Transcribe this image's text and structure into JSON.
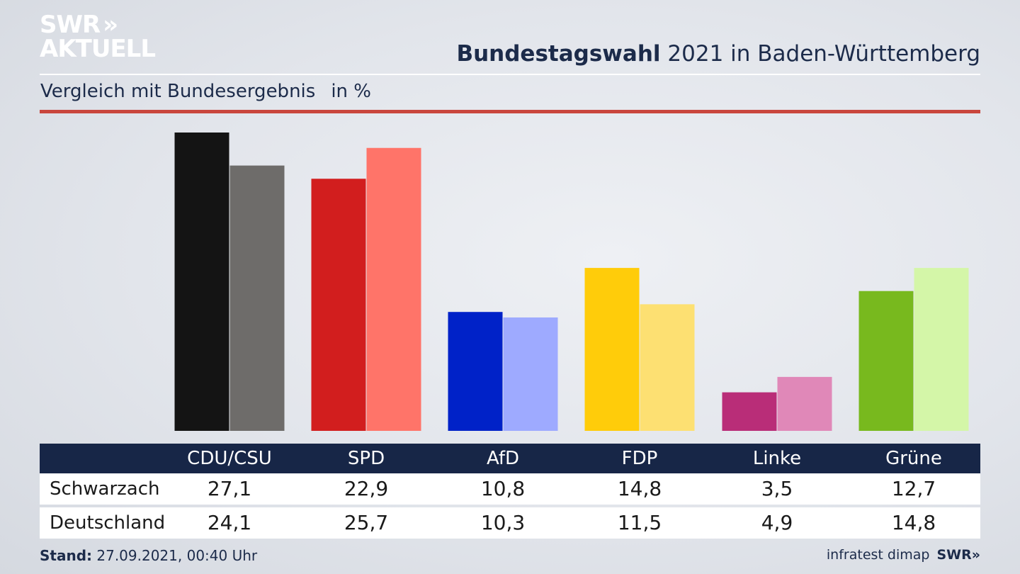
{
  "logo": {
    "line1": "SWR",
    "chevrons": "»",
    "line2": "AKTUELL"
  },
  "header": {
    "title_bold": "Bundestagswahl",
    "title_rest": " 2021 in Baden-Württemberg"
  },
  "subtitle": {
    "text": "Vergleich mit Bundesergebnis",
    "unit": "in %"
  },
  "table": {
    "rows": [
      {
        "label": "Schwarzach",
        "values": [
          "27,1",
          "22,9",
          "10,8",
          "14,8",
          "3,5",
          "12,7"
        ]
      },
      {
        "label": "Deutschland",
        "values": [
          "24,1",
          "25,7",
          "10,3",
          "11,5",
          "4,9",
          "14,8"
        ]
      }
    ]
  },
  "footer": {
    "stand_label": "Stand:",
    "stand_value": " 27.09.2021, 00:40 Uhr",
    "source": "infratest dimap",
    "brand": "SWR»"
  },
  "chart_data": {
    "type": "bar",
    "categories": [
      "CDU/CSU",
      "SPD",
      "AfD",
      "FDP",
      "Linke",
      "Grüne"
    ],
    "series": [
      {
        "name": "Schwarzach",
        "values": [
          27.1,
          22.9,
          10.8,
          14.8,
          3.5,
          12.7
        ]
      },
      {
        "name": "Deutschland",
        "values": [
          24.1,
          25.7,
          10.3,
          11.5,
          4.9,
          14.8
        ]
      }
    ],
    "colors_series1": [
      "#141414",
      "#d21e1e",
      "#0022c8",
      "#ffcc0a",
      "#b92d78",
      "#78b91e"
    ],
    "colors_series2": [
      "#6e6c6a",
      "#ff7469",
      "#9eaaff",
      "#fde072",
      "#e088b8",
      "#d4f6a8"
    ],
    "ylim": [
      0,
      27.1
    ],
    "grid": false,
    "legend": "table below chart"
  }
}
